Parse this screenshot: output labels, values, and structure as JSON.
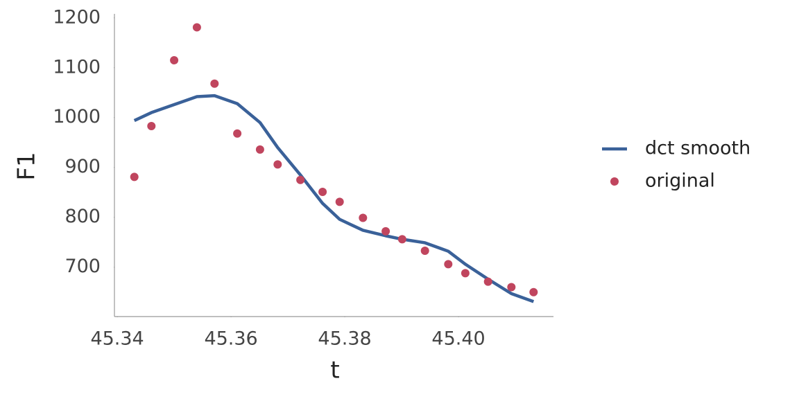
{
  "chart_data": {
    "type": "line",
    "x_label": "t",
    "y_label": "F1",
    "x": [
      45.343,
      45.346,
      45.35,
      45.354,
      45.3571,
      45.3611,
      45.3651,
      45.3682,
      45.3722,
      45.3761,
      45.3791,
      45.3832,
      45.3872,
      45.3901,
      45.3941,
      45.3982,
      45.4012,
      45.4052,
      45.4093,
      45.4132
    ],
    "series": [
      {
        "name": "dct smooth",
        "type": "line",
        "color": "#3a6199",
        "values": [
          994,
          1010,
          1026,
          1042,
          1044,
          1028,
          990,
          940,
          885,
          828,
          796,
          774,
          763,
          756,
          749,
          732,
          706,
          676,
          647,
          631
        ]
      },
      {
        "name": "original",
        "type": "scatter",
        "color": "#c0455e",
        "values": [
          881,
          983,
          1115,
          1181,
          1068,
          968,
          936,
          906,
          875,
          851,
          831,
          799,
          772,
          756,
          733,
          706,
          688,
          671,
          660,
          650
        ]
      }
    ],
    "xlim": [
      45.3395,
      45.4167
    ],
    "ylim": [
      601,
      1208
    ],
    "xticks": [
      45.34,
      45.36,
      45.38,
      {
        "value": 45.4,
        "label": "45.40"
      }
    ],
    "yticks": [
      700,
      800,
      900,
      1000,
      1100,
      1200
    ],
    "legend": "right"
  }
}
